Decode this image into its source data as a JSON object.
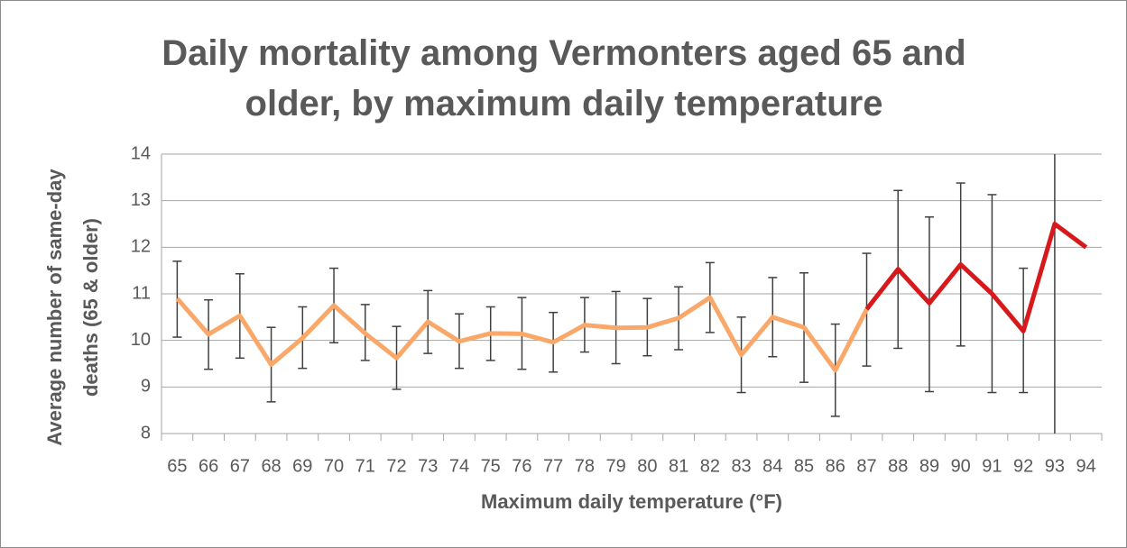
{
  "chart_data": {
    "type": "line",
    "title": "Daily mortality among Vermonters aged 65 and older, by maximum daily temperature",
    "x_label": "Maximum daily temperature (°F)",
    "y_label": "Average number of same-day deaths (65 & older)",
    "categories": [
      "65",
      "66",
      "67",
      "68",
      "69",
      "70",
      "71",
      "72",
      "73",
      "74",
      "75",
      "76",
      "77",
      "78",
      "79",
      "80",
      "81",
      "82",
      "83",
      "84",
      "85",
      "86",
      "87",
      "88",
      "89",
      "90",
      "91",
      "92",
      "93",
      "94"
    ],
    "series": [
      {
        "color": "#f9a86a",
        "values": [
          10.9,
          10.13,
          10.53,
          9.48,
          10.05,
          10.75,
          10.15,
          9.62,
          10.4,
          9.98,
          10.15,
          10.14,
          9.96,
          10.33,
          10.27,
          10.28,
          10.48,
          10.92,
          9.69,
          10.5,
          10.28,
          9.36,
          10.67,
          null,
          null,
          null,
          null,
          null,
          null,
          null
        ]
      },
      {
        "color": "#d7191c",
        "values": [
          null,
          null,
          null,
          null,
          null,
          null,
          null,
          null,
          null,
          null,
          null,
          null,
          null,
          null,
          null,
          null,
          null,
          null,
          null,
          null,
          null,
          null,
          10.67,
          11.53,
          10.8,
          11.63,
          11.0,
          10.2,
          12.5,
          12.0
        ]
      }
    ],
    "error_low": [
      10.07,
      9.38,
      9.62,
      8.68,
      9.4,
      9.95,
      9.57,
      8.95,
      9.72,
      9.4,
      9.57,
      9.38,
      9.32,
      9.75,
      9.5,
      9.67,
      9.8,
      10.17,
      8.88,
      9.65,
      9.1,
      8.37,
      9.45,
      9.83,
      8.9,
      9.88,
      8.88,
      8.88,
      7,
      null
    ],
    "error_high": [
      11.7,
      10.87,
      11.43,
      10.28,
      10.72,
      11.55,
      10.77,
      10.3,
      11.07,
      10.57,
      10.72,
      10.92,
      10.6,
      10.92,
      11.05,
      10.9,
      11.15,
      11.67,
      10.5,
      11.35,
      11.45,
      10.35,
      11.87,
      13.22,
      12.65,
      13.38,
      13.13,
      11.55,
      18,
      null
    ],
    "error_color": "#404040",
    "ylim": [
      8,
      14
    ],
    "yticks": [
      8,
      9,
      10,
      11,
      12,
      13,
      14
    ],
    "grid": true
  }
}
